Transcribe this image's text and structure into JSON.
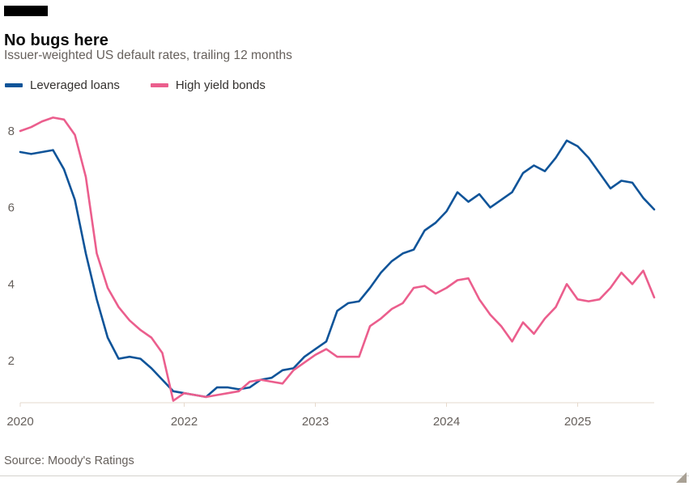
{
  "header": {
    "title": "No bugs here",
    "subtitle": "Issuer-weighted US default rates, trailing 12 months"
  },
  "legend": [
    {
      "label": "Leveraged loans",
      "color": "#0f5499"
    },
    {
      "label": "High yield bonds",
      "color": "#eb5e8d"
    }
  ],
  "chart_data": {
    "type": "line",
    "title": "No bugs here",
    "subtitle": "Issuer-weighted US default rates, trailing 12 months",
    "x_unit": "month",
    "x_start": "2020-10",
    "x_end": "2025-08",
    "x_tick_labels": [
      "2020",
      "2022",
      "2023",
      "2024",
      "2025"
    ],
    "x_tick_month_index": [
      0,
      15,
      27,
      39,
      51
    ],
    "y_ticks": [
      2,
      4,
      6,
      8
    ],
    "ylim": [
      0.9,
      8.6
    ],
    "grid": false,
    "legend_position": "top-left",
    "series": [
      {
        "name": "Leveraged loans",
        "color": "#0f5499",
        "values": [
          7.45,
          7.4,
          7.45,
          7.5,
          7.0,
          6.2,
          4.8,
          3.6,
          2.6,
          2.05,
          2.1,
          2.05,
          1.8,
          1.5,
          1.2,
          1.15,
          1.1,
          1.05,
          1.3,
          1.3,
          1.25,
          1.3,
          1.5,
          1.55,
          1.75,
          1.8,
          2.1,
          2.3,
          2.5,
          3.3,
          3.5,
          3.55,
          3.9,
          4.3,
          4.6,
          4.8,
          4.9,
          5.4,
          5.6,
          5.9,
          6.4,
          6.15,
          6.35,
          6.0,
          6.2,
          6.4,
          6.9,
          7.1,
          6.95,
          7.3,
          7.75,
          7.6,
          7.3,
          6.9,
          6.5,
          6.7,
          6.65,
          6.25,
          5.95
        ]
      },
      {
        "name": "High yield bonds",
        "color": "#eb5e8d",
        "values": [
          8.0,
          8.1,
          8.25,
          8.35,
          8.3,
          7.9,
          6.8,
          4.8,
          3.9,
          3.4,
          3.05,
          2.8,
          2.6,
          2.2,
          0.95,
          1.15,
          1.1,
          1.05,
          1.1,
          1.15,
          1.2,
          1.45,
          1.5,
          1.45,
          1.4,
          1.75,
          1.95,
          2.15,
          2.3,
          2.1,
          2.1,
          2.1,
          2.9,
          3.1,
          3.35,
          3.5,
          3.9,
          3.95,
          3.75,
          3.9,
          4.1,
          4.15,
          3.6,
          3.2,
          2.9,
          2.5,
          3.0,
          2.7,
          3.1,
          3.4,
          4.0,
          3.6,
          3.55,
          3.6,
          3.9,
          4.3,
          4.0,
          4.35,
          3.65
        ]
      }
    ]
  },
  "footer": {
    "source": "Source: Moody's Ratings"
  }
}
